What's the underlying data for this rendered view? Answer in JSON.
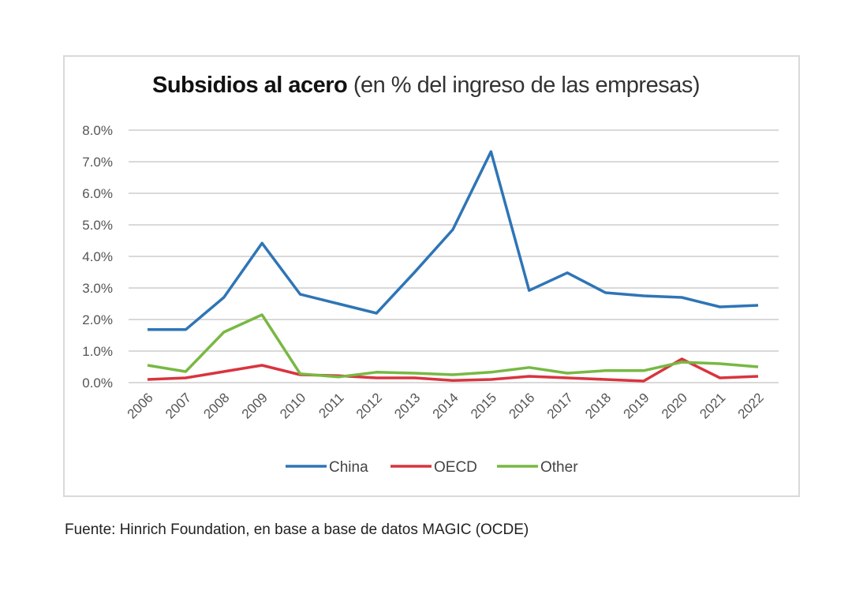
{
  "chart_data": {
    "type": "line",
    "title": "Subsidios al acero",
    "subtitle": "(en % del ingreso de las empresas)",
    "xlabel": "",
    "ylabel": "",
    "categories": [
      "2006",
      "2007",
      "2008",
      "2009",
      "2010",
      "2011",
      "2012",
      "2013",
      "2014",
      "2015",
      "2016",
      "2017",
      "2018",
      "2019",
      "2020",
      "2021",
      "2022"
    ],
    "ylim": [
      0,
      8
    ],
    "yticks": [
      "0.0%",
      "1.0%",
      "2.0%",
      "3.0%",
      "4.0%",
      "5.0%",
      "6.0%",
      "7.0%",
      "8.0%"
    ],
    "grid": true,
    "legend": "bottom",
    "series": [
      {
        "name": "China",
        "color": "#2e75b6",
        "values": [
          1.68,
          1.68,
          2.7,
          4.42,
          2.8,
          2.5,
          2.2,
          3.5,
          4.85,
          7.32,
          2.92,
          3.48,
          2.85,
          2.75,
          2.7,
          2.4,
          2.45
        ]
      },
      {
        "name": "OECD",
        "color": "#d9343f",
        "values": [
          0.1,
          0.15,
          0.35,
          0.55,
          0.25,
          0.22,
          0.15,
          0.15,
          0.07,
          0.1,
          0.2,
          0.15,
          0.1,
          0.05,
          0.75,
          0.15,
          0.2
        ]
      },
      {
        "name": "Other",
        "color": "#78b843",
        "values": [
          0.55,
          0.35,
          1.6,
          2.15,
          0.28,
          0.18,
          0.33,
          0.3,
          0.25,
          0.33,
          0.48,
          0.3,
          0.38,
          0.38,
          0.65,
          0.6,
          0.5
        ]
      }
    ]
  },
  "source": "Fuente: Hinrich Foundation, en base a base de datos MAGIC (OCDE)"
}
